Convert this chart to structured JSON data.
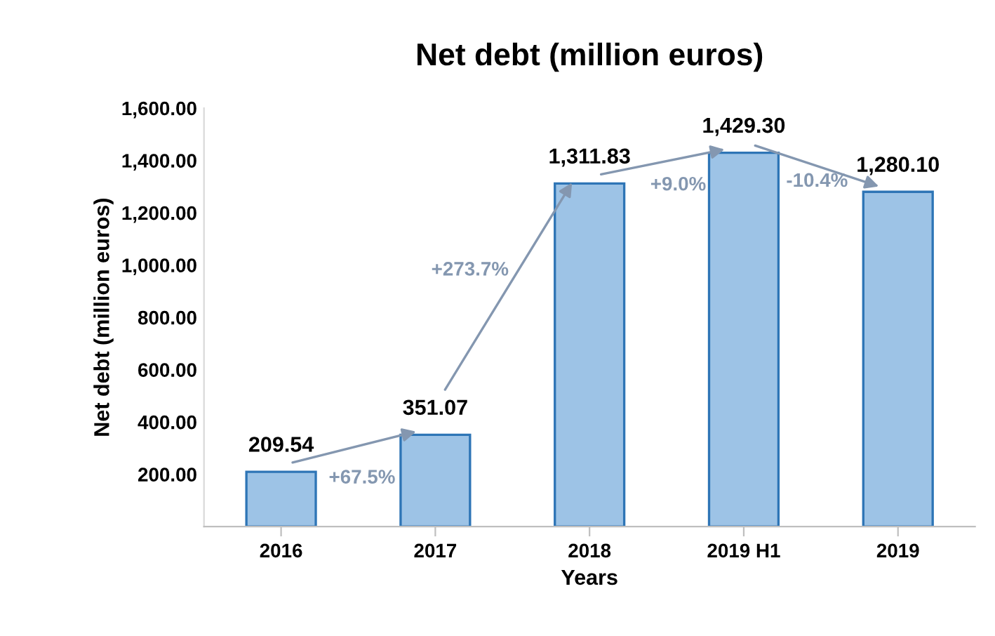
{
  "chart_data": {
    "type": "bar",
    "title": "Net debt (million euros)",
    "xlabel": "Years",
    "ylabel": "Net debt (million euros)",
    "categories": [
      "2016",
      "2017",
      "2018",
      "2019 H1",
      "2019"
    ],
    "values": [
      209.54,
      351.07,
      1311.83,
      1429.3,
      1280.1
    ],
    "value_labels": [
      "209.54",
      "351.07",
      "1,311.83",
      "1,429.30",
      "1,280.10"
    ],
    "color": "#9dc3e6",
    "ylim": [
      0,
      1600
    ],
    "yticks": [
      {
        "value": 200,
        "label": "200.00"
      },
      {
        "value": 400,
        "label": "400.00"
      },
      {
        "value": 600,
        "label": "600.00"
      },
      {
        "value": 800,
        "label": "800.00"
      },
      {
        "value": 1000,
        "label": "1,000.00"
      },
      {
        "value": 1200,
        "label": "1,200.00"
      },
      {
        "value": 1400,
        "label": "1,400.00"
      },
      {
        "value": 1600,
        "label": "1,600.00"
      }
    ],
    "grid": false,
    "legend": false,
    "annotations": [
      "+67.5%",
      "+273.7%",
      "+9.0%",
      "-10.4%"
    ]
  }
}
